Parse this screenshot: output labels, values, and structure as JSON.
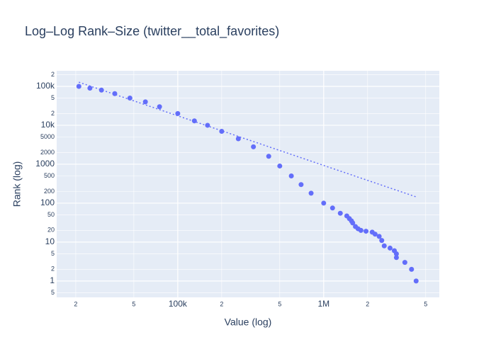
{
  "chart_data": {
    "type": "scatter",
    "title": "Log–Log Rank–Size (twitter__total_favorites)",
    "x_label": "Value (log)",
    "y_label": "Rank (log)",
    "x_log": true,
    "y_log": true,
    "grid": true,
    "xlim": [
      14800,
      6200000
    ],
    "ylim": [
      0.38,
      251000
    ],
    "xticks": [
      {
        "value": 20000,
        "label": "2"
      },
      {
        "value": 50000,
        "label": "5"
      },
      {
        "value": 100000,
        "label": "100k"
      },
      {
        "value": 200000,
        "label": "2"
      },
      {
        "value": 500000,
        "label": "5"
      },
      {
        "value": 1000000,
        "label": "1M"
      },
      {
        "value": 2000000,
        "label": "2"
      },
      {
        "value": 5000000,
        "label": "5"
      }
    ],
    "yticks": [
      {
        "value": 0.5,
        "label": "5"
      },
      1,
      2,
      5,
      10,
      20,
      50,
      100,
      200,
      500,
      1000,
      2000,
      5000,
      {
        "value": 10000,
        "label": "10k"
      },
      {
        "value": 20000,
        "label": "2"
      },
      {
        "value": 50000,
        "label": "5"
      },
      {
        "value": 100000,
        "label": "100k"
      },
      {
        "value": 200000,
        "label": "2"
      }
    ],
    "series": [
      {
        "mode": "markers",
        "color": "#636efa",
        "x": [
          21000,
          25000,
          30000,
          37000,
          47000,
          60000,
          75000,
          100000,
          130000,
          160000,
          200000,
          260000,
          330000,
          420000,
          500000,
          600000,
          700000,
          820000,
          1000000,
          1150000,
          1300000,
          1440000,
          1500000,
          1550000,
          1580000,
          1650000,
          1720000,
          1800000,
          1950000,
          2150000,
          2250000,
          2400000,
          2500000,
          2600000,
          2850000,
          3050000,
          3150000,
          3150000,
          3600000,
          4000000,
          4300000
        ],
        "values": [
          100000,
          90000,
          80000,
          65000,
          50000,
          40000,
          30000,
          20000,
          13000,
          10000,
          7000,
          4500,
          2800,
          1600,
          900,
          500,
          300,
          180,
          100,
          75,
          55,
          47,
          40,
          35,
          31,
          25,
          22,
          20,
          19,
          18,
          16,
          14,
          11,
          8,
          7,
          6,
          5,
          4,
          3,
          2,
          1
        ]
      },
      {
        "mode": "lines",
        "dash": "dot",
        "color": "#636efa",
        "x": [
          21000,
          4300000
        ],
        "values": [
          128000,
          145
        ]
      }
    ]
  }
}
